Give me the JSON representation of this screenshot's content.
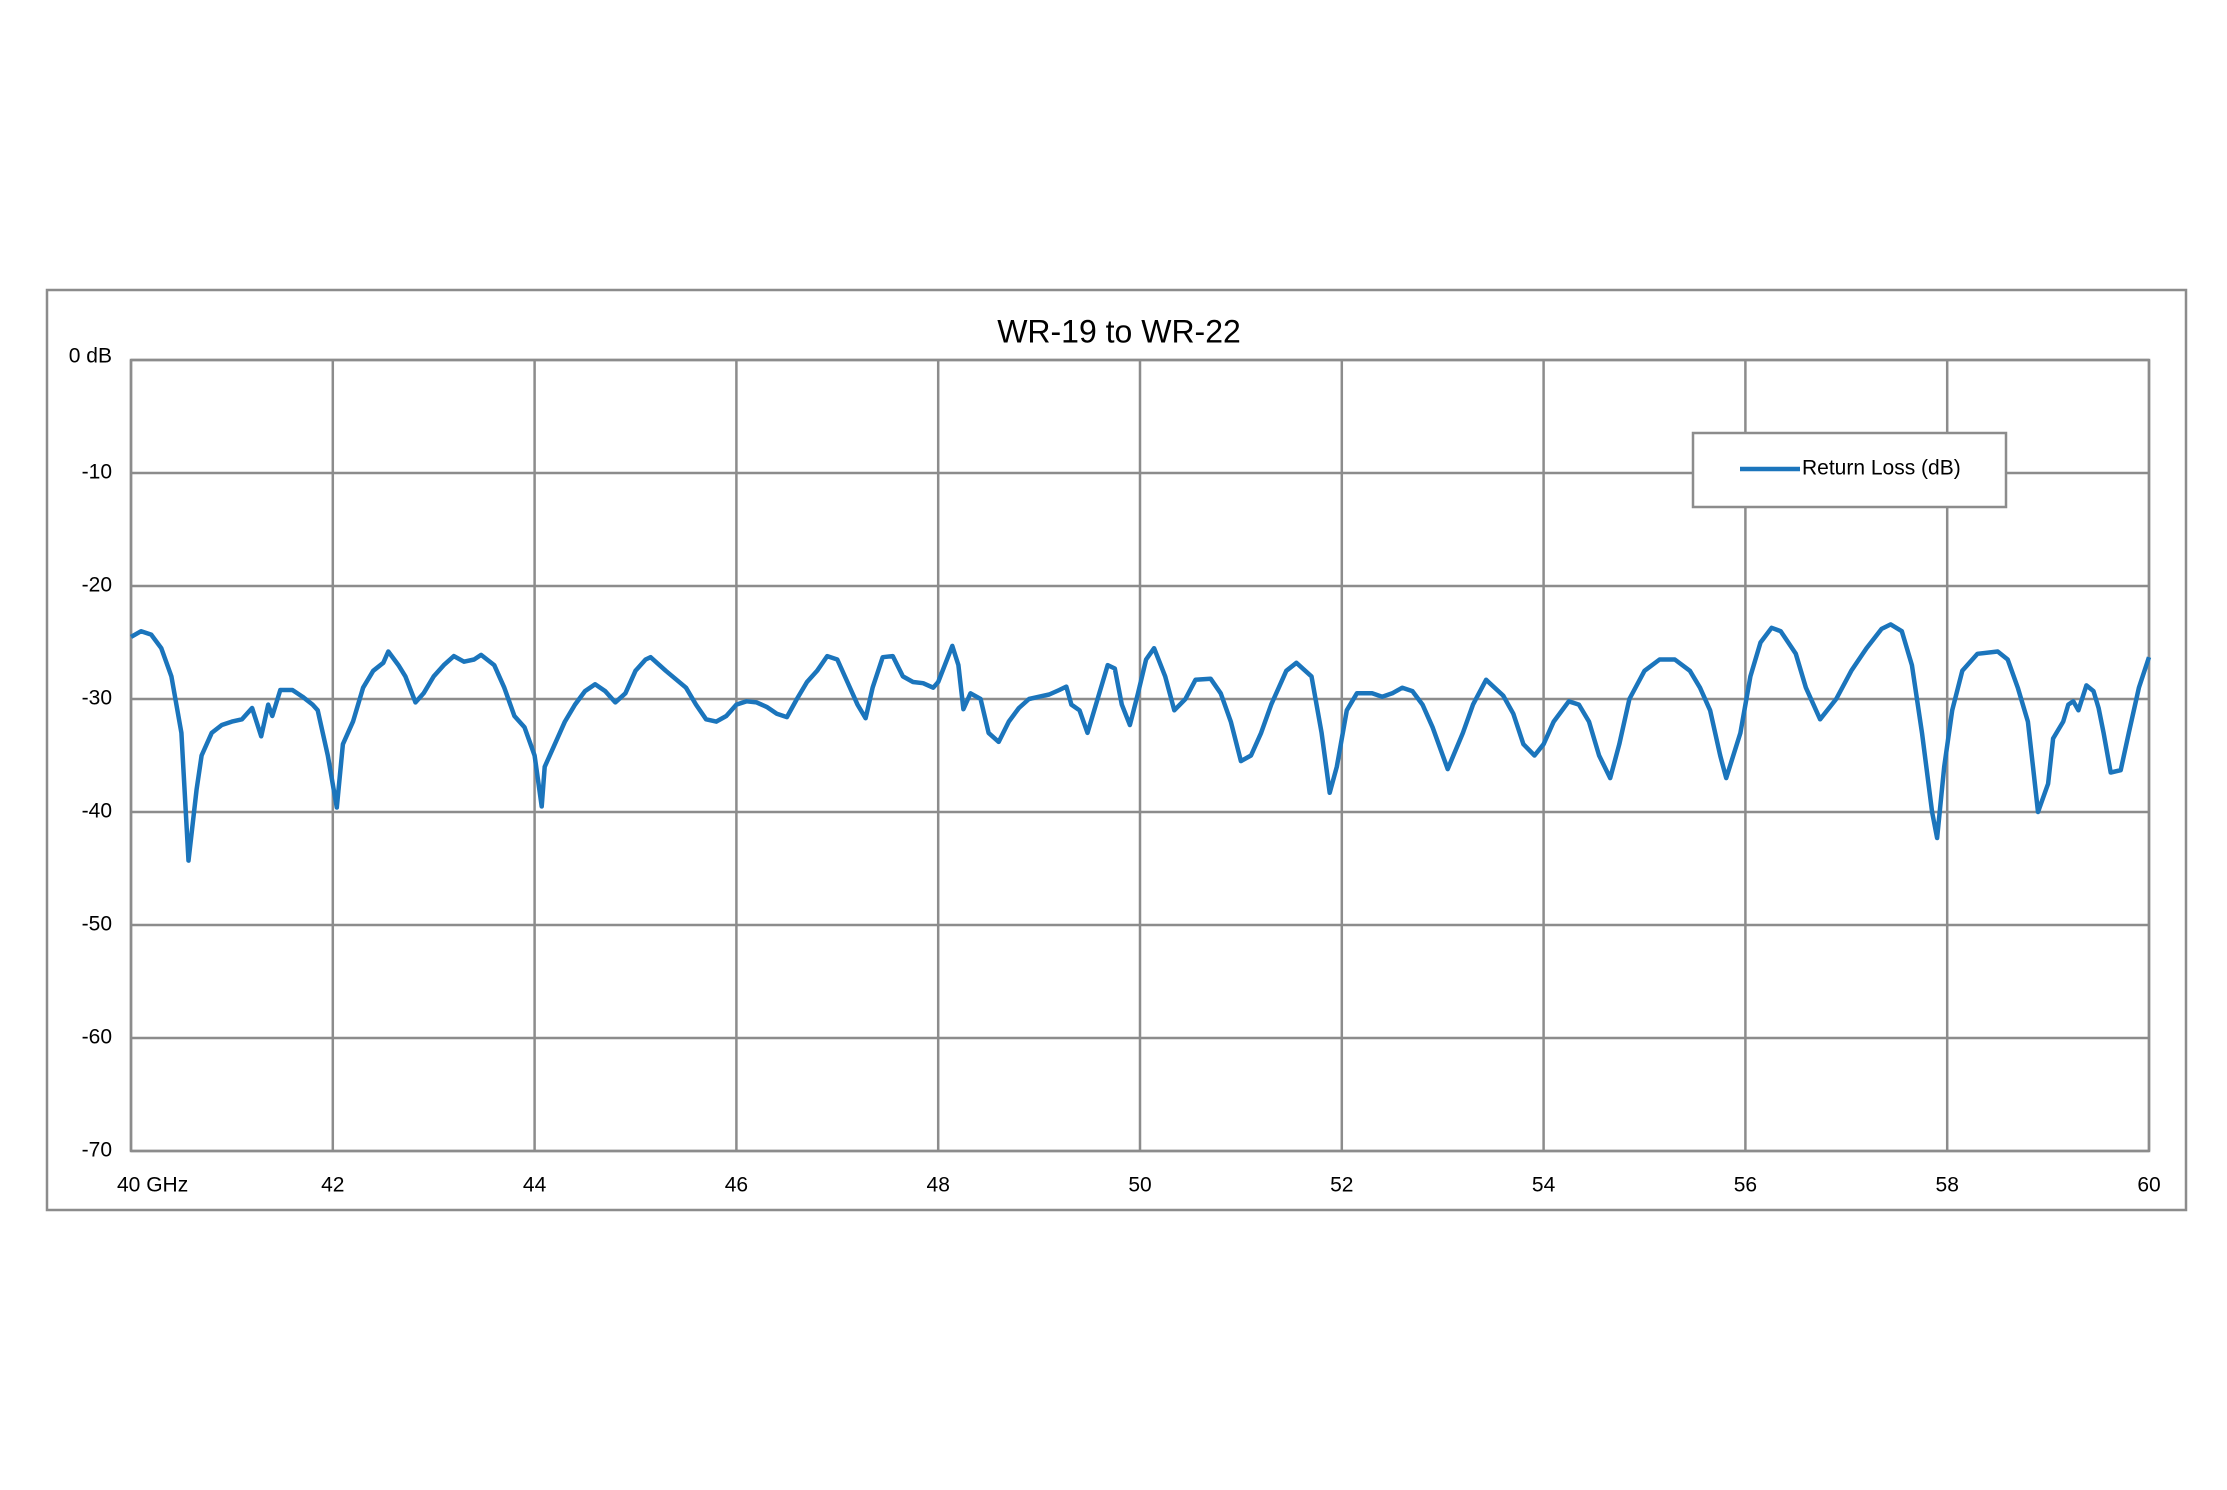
{
  "chart_data": {
    "type": "line",
    "title": "WR-19 to WR-22",
    "x": [
      40.0,
      40.1,
      40.2,
      40.3,
      40.4,
      40.5,
      40.57,
      40.65,
      40.7,
      40.8,
      40.9,
      41.0,
      41.1,
      41.2,
      41.29,
      41.36,
      41.4,
      41.48,
      41.6,
      41.7,
      41.8,
      41.85,
      41.95,
      42.04,
      42.1,
      42.2,
      42.3,
      42.4,
      42.5,
      42.55,
      42.65,
      42.72,
      42.82,
      42.9,
      43.0,
      43.1,
      43.2,
      43.3,
      43.4,
      43.47,
      43.6,
      43.7,
      43.8,
      43.9,
      44.0,
      44.07,
      44.1,
      44.2,
      44.3,
      44.4,
      44.5,
      44.6,
      44.7,
      44.8,
      44.9,
      45.0,
      45.1,
      45.15,
      45.3,
      45.5,
      45.6,
      45.7,
      45.8,
      45.9,
      46.0,
      46.1,
      46.2,
      46.3,
      46.4,
      46.5,
      46.6,
      46.7,
      46.8,
      46.9,
      47.0,
      47.1,
      47.2,
      47.28,
      47.35,
      47.45,
      47.55,
      47.65,
      47.75,
      47.85,
      47.95,
      48.0,
      48.14,
      48.2,
      48.25,
      48.32,
      48.42,
      48.5,
      48.6,
      48.7,
      48.8,
      48.9,
      49.0,
      49.1,
      49.2,
      49.27,
      49.32,
      49.4,
      49.48,
      49.58,
      49.68,
      49.75,
      49.82,
      49.9,
      49.98,
      50.06,
      50.14,
      50.25,
      50.34,
      50.45,
      50.55,
      50.7,
      50.8,
      50.9,
      51.0,
      51.1,
      51.2,
      51.3,
      51.45,
      51.55,
      51.7,
      51.8,
      51.88,
      51.95,
      52.05,
      52.15,
      52.3,
      52.4,
      52.5,
      52.6,
      52.7,
      52.8,
      52.9,
      53.05,
      53.2,
      53.3,
      53.43,
      53.6,
      53.7,
      53.8,
      53.91,
      54.0,
      54.1,
      54.25,
      54.35,
      54.45,
      54.55,
      54.66,
      54.75,
      54.85,
      55.0,
      55.15,
      55.3,
      55.45,
      55.55,
      55.65,
      55.75,
      55.81,
      55.95,
      56.05,
      56.15,
      56.26,
      56.35,
      56.5,
      56.6,
      56.74,
      56.9,
      57.05,
      57.2,
      57.35,
      57.44,
      57.55,
      57.65,
      57.75,
      57.85,
      57.9,
      57.97,
      58.05,
      58.15,
      58.3,
      58.5,
      58.6,
      58.7,
      58.8,
      58.85,
      58.9,
      59.0,
      59.05,
      59.15,
      59.2,
      59.25,
      59.3,
      59.38,
      59.45,
      59.5,
      59.55,
      59.62,
      59.72,
      59.8,
      59.9,
      60.0
    ],
    "series": [
      {
        "name": "Return Loss (dB)",
        "color": "#1b75bc",
        "values": [
          -24.5,
          -24.0,
          -24.3,
          -25.5,
          -28,
          -33,
          -44.3,
          -38,
          -35,
          -33,
          -32.3,
          -32,
          -31.8,
          -30.8,
          -33.3,
          -30.5,
          -31.5,
          -29.2,
          -29.2,
          -29.8,
          -30.5,
          -31,
          -35,
          -39.6,
          -34,
          -32,
          -29,
          -27.5,
          -26.8,
          -25.8,
          -27,
          -28,
          -30.3,
          -29.5,
          -28,
          -27,
          -26.2,
          -26.7,
          -26.5,
          -26.1,
          -27,
          -29,
          -31.5,
          -32.5,
          -35,
          -39.5,
          -36,
          -34,
          -32,
          -30.5,
          -29.3,
          -28.7,
          -29.3,
          -30.3,
          -29.5,
          -27.5,
          -26.5,
          -26.3,
          -27.5,
          -29,
          -30.5,
          -31.8,
          -32,
          -31.5,
          -30.5,
          -30.2,
          -30.3,
          -30.7,
          -31.3,
          -31.6,
          -30,
          -28.5,
          -27.5,
          -26.2,
          -26.5,
          -28.5,
          -30.5,
          -31.7,
          -29,
          -26.3,
          -26.2,
          -28,
          -28.5,
          -28.6,
          -29,
          -28.5,
          -25.3,
          -27,
          -30.9,
          -29.5,
          -30,
          -33,
          -33.8,
          -32,
          -30.8,
          -30,
          -29.8,
          -29.6,
          -29.2,
          -28.9,
          -30.5,
          -31,
          -33,
          -30,
          -27,
          -27.3,
          -30.5,
          -32.3,
          -29.5,
          -26.5,
          -25.5,
          -28,
          -31,
          -30,
          -28.3,
          -28.2,
          -29.5,
          -32,
          -35.5,
          -35,
          -33,
          -30.5,
          -27.5,
          -26.8,
          -28,
          -33,
          -38.3,
          -36,
          -31,
          -29.5,
          -29.5,
          -29.8,
          -29.5,
          -29,
          -29.3,
          -30.5,
          -32.5,
          -36.2,
          -33,
          -30.5,
          -28.3,
          -29.7,
          -31.3,
          -34,
          -35,
          -34,
          -32,
          -30.2,
          -30.5,
          -32,
          -35,
          -37,
          -34,
          -30,
          -27.5,
          -26.5,
          -26.5,
          -27.5,
          -29,
          -31,
          -35,
          -37,
          -33,
          -28,
          -25,
          -23.7,
          -24,
          -26,
          -29,
          -31.8,
          -30,
          -27.5,
          -25.5,
          -23.8,
          -23.4,
          -24,
          -27,
          -33,
          -40,
          -42.3,
          -36,
          -31,
          -27.5,
          -26,
          -25.8,
          -26.5,
          -29,
          -32,
          -36,
          -40,
          -37.5,
          -33.5,
          -32,
          -30.5,
          -30.2,
          -31,
          -28.8,
          -29.3,
          -30.8,
          -33,
          -36.5,
          -36.3,
          -33,
          -29,
          -26.3
        ]
      }
    ],
    "xlim": [
      40,
      60
    ],
    "xticks": [
      {
        "value": 40,
        "label": "40 GHz"
      },
      42,
      44,
      46,
      48,
      50,
      52,
      54,
      56,
      58,
      60
    ],
    "ylim": [
      -70,
      0
    ],
    "yticks": [
      {
        "value": 0,
        "label": "0 dB"
      },
      -10,
      -20,
      -30,
      -40,
      -50,
      -60,
      -70
    ],
    "grid": true,
    "legend": "top-right"
  }
}
